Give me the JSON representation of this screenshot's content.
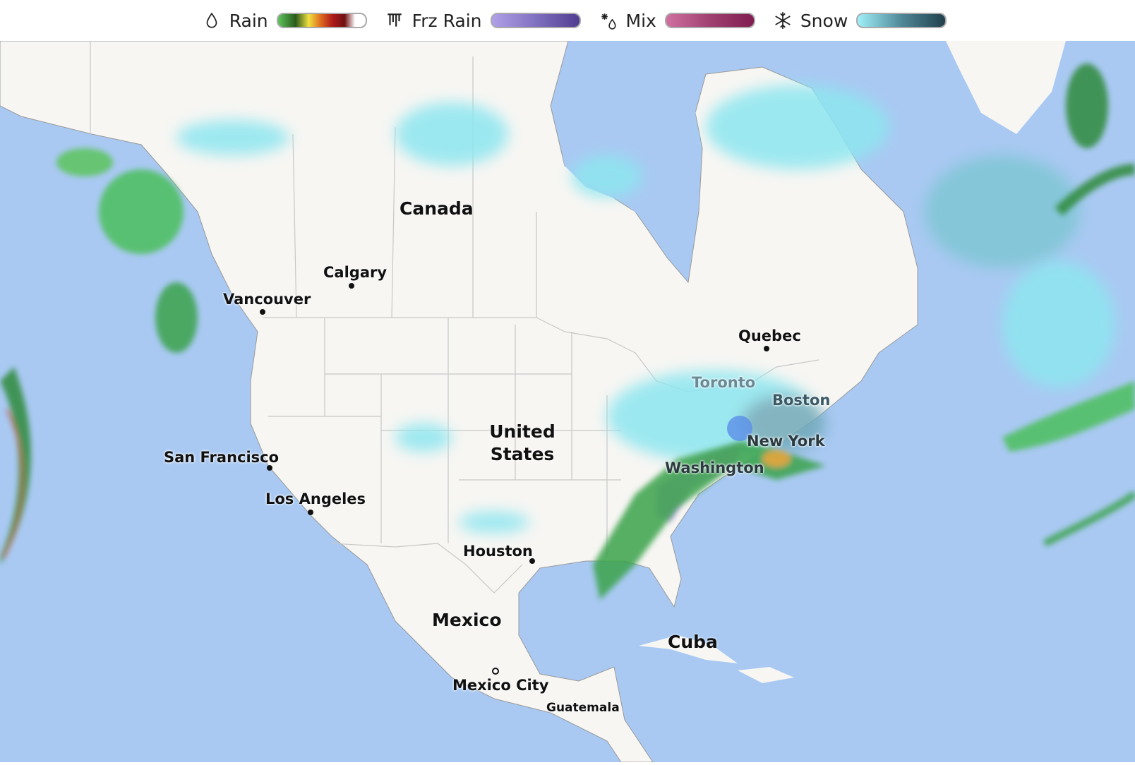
{
  "legend": [
    {
      "label": "Rain",
      "icon": "raindrop-icon",
      "gradient": [
        "#5cc45c",
        "#2a5a1a",
        "#f0e040",
        "#e07020",
        "#b01a1a",
        "#701010",
        "#ffffff"
      ]
    },
    {
      "label": "Frz Rain",
      "icon": "icicle-icon",
      "gradient": [
        "#b0a0e8",
        "#8070c0",
        "#503c90"
      ]
    },
    {
      "label": "Mix",
      "icon": "snow-rain-mix-icon",
      "gradient": [
        "#d070a0",
        "#a04070",
        "#801c50"
      ]
    },
    {
      "label": "Snow",
      "icon": "snowflake-icon",
      "gradient": [
        "#a0f0f8",
        "#508898",
        "#20404c"
      ]
    }
  ],
  "colors": {
    "ocean": "#a9c9f2",
    "land": "#f7f6f3",
    "border": "#c8c8c8",
    "rain": "#3cb452",
    "snow": "#8de6f0",
    "frz": "#b49ae6"
  },
  "countries": [
    {
      "label": "Canada"
    },
    {
      "label": "United States"
    },
    {
      "label": "Mexico"
    },
    {
      "label": "Cuba"
    }
  ],
  "cities": [
    {
      "label": "Vancouver"
    },
    {
      "label": "Calgary"
    },
    {
      "label": "San Francisco"
    },
    {
      "label": "Los Angeles"
    },
    {
      "label": "Houston"
    },
    {
      "label": "Mexico City"
    },
    {
      "label": "Guatemala"
    },
    {
      "label": "Quebec"
    },
    {
      "label": "Toronto"
    },
    {
      "label": "Boston"
    },
    {
      "label": "New York"
    },
    {
      "label": "Washington"
    }
  ]
}
